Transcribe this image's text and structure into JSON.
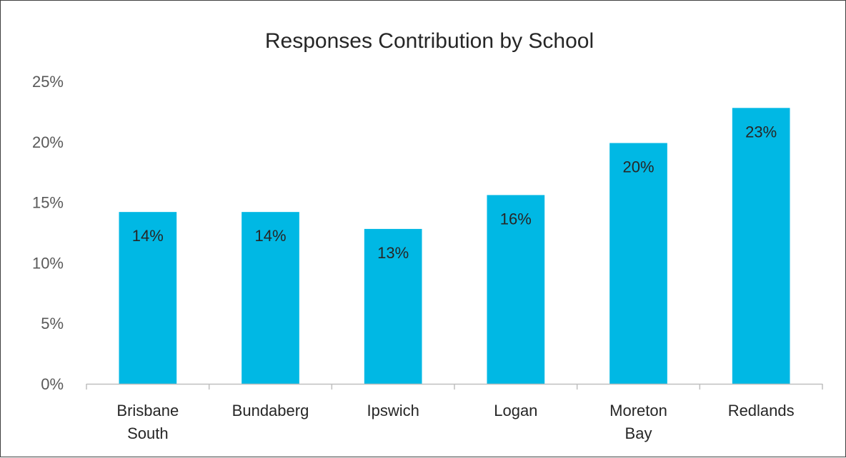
{
  "chart_data": {
    "type": "bar",
    "title": "Responses Contribution by School",
    "categories": [
      [
        "Brisbane",
        "South"
      ],
      [
        "Bundaberg"
      ],
      [
        "Ipswich"
      ],
      [
        "Logan"
      ],
      [
        "Moreton",
        "Bay"
      ],
      [
        "Redlands"
      ]
    ],
    "values": [
      14.2,
      14.2,
      12.8,
      15.6,
      19.9,
      22.8
    ],
    "data_labels": [
      "14%",
      "14%",
      "13%",
      "16%",
      "20%",
      "23%"
    ],
    "ylim": [
      0,
      25
    ],
    "yticks": [
      0,
      5,
      10,
      15,
      20,
      25
    ],
    "ytick_labels": [
      "0%",
      "5%",
      "10%",
      "15%",
      "20%",
      "25%"
    ],
    "grid": false,
    "legend": "none",
    "colors": {
      "bar": "#00B8E4",
      "axis": "#BFBFBF"
    }
  }
}
